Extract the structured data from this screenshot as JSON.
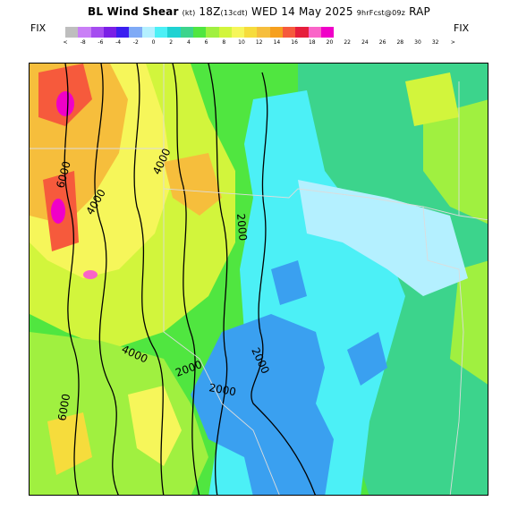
{
  "header": {
    "name": "BL Wind Shear",
    "units": "(kt)",
    "time": "18Z",
    "local_time": "(13cdt)",
    "date": "WED 14 May 2025",
    "forecast": "9hrFcst@09z",
    "model": "RAP"
  },
  "legend": {
    "fix_left": "FIX",
    "fix_right": "FIX",
    "ticks": [
      "<",
      "-8",
      "-6",
      "-4",
      "-2",
      "0",
      "2",
      "4",
      "6",
      "8",
      "10",
      "12",
      "14",
      "16",
      "18",
      "20",
      "22",
      "24",
      "26",
      "28",
      "30",
      "32",
      ">"
    ],
    "colors": [
      "#bebebe",
      "#c97ff6",
      "#a54cf0",
      "#7a1ee6",
      "#3a1ef0",
      "#7faaf6",
      "#b4f0ff",
      "#4cf0f6",
      "#1ed2d2",
      "#3cd48c",
      "#50e640",
      "#a0f040",
      "#d2f53c",
      "#f6f65a",
      "#f6dc3c",
      "#f6be3c",
      "#f6a01e",
      "#f65a3c",
      "#e61e3c",
      "#fa64c8",
      "#f000c8"
    ]
  },
  "map": {
    "contour_labels": [
      "6000",
      "4000",
      "4000",
      "2000",
      "2000",
      "2000",
      "4000",
      "2000",
      "6000"
    ],
    "region_colors": {
      "blue": "#3aa0f0",
      "light_blue": "#4cf0f6",
      "pale_cyan": "#b4f0ff",
      "green": "#3cd48c",
      "lime": "#a0f040",
      "yellow_green": "#d2f53c",
      "yellow": "#f6f65a",
      "orange": "#f6be3c",
      "red": "#f65a3c",
      "magenta": "#f000c8"
    }
  }
}
